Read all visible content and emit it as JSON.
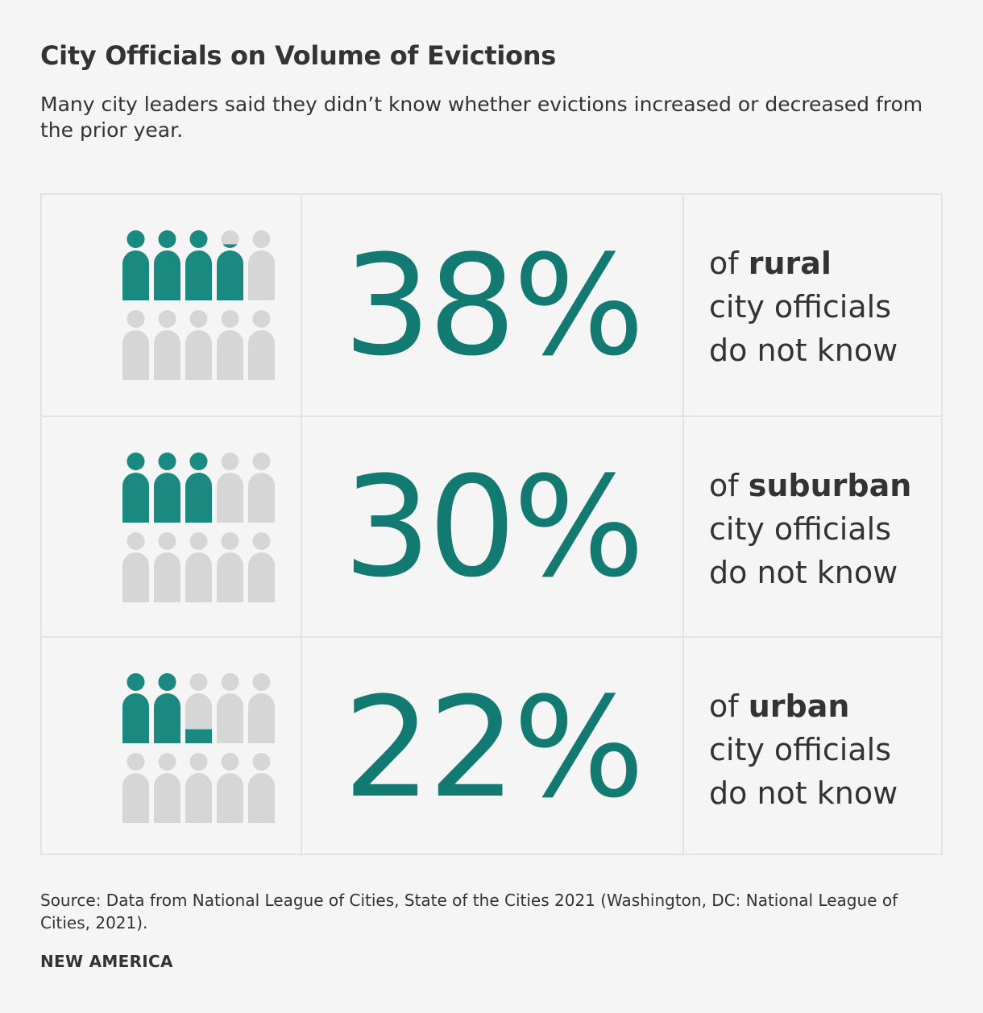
{
  "title": "City Officials on Volume of Evictions",
  "subtitle": "Many city leaders said they didn’t know whether evictions increased or decreased from the prior year.",
  "colors": {
    "accent": "#137a72",
    "icon_fill": "#1a8a81",
    "icon_empty": "#d6d6d6",
    "text": "#333333",
    "background": "#f5f5f5",
    "border": "#e3e3e3"
  },
  "chart_data": {
    "type": "pictograph",
    "icons_per_row": 10,
    "rows": [
      {
        "value": 38,
        "label_prefix": "of",
        "category": "rural",
        "label_suffix_1": "city officials",
        "label_suffix_2": "do not know"
      },
      {
        "value": 30,
        "label_prefix": "of",
        "category": "suburban",
        "label_suffix_1": "city officials",
        "label_suffix_2": "do not know"
      },
      {
        "value": 22,
        "label_prefix": "of",
        "category": "urban",
        "label_suffix_1": "city officials",
        "label_suffix_2": "do not know"
      }
    ],
    "display": {
      "r1": "38%",
      "r2": "30%",
      "r3": "22%"
    }
  },
  "source": "Source: Data from National League of Cities, State of the Cities 2021 (Washington, DC: National League of Cities, 2021).",
  "brand": "NEW AMERICA"
}
